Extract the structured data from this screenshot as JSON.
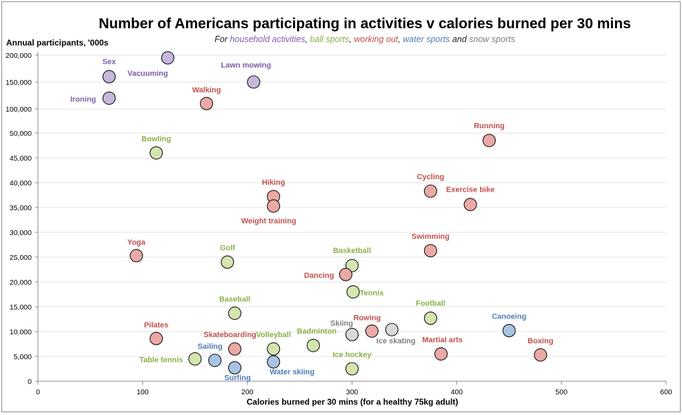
{
  "chart_data": {
    "type": "scatter",
    "title": "Number of Americans participating in activities v calories burned per 30 mins",
    "subtitle": {
      "prefix": "For ",
      "household": "household  activities",
      "sep1": ", ",
      "ball": "ball sports",
      "sep2": ", ",
      "working": "working  out",
      "sep3": ", ",
      "water": "water sports",
      "and": " and ",
      "snow": "snow sports"
    },
    "xlabel": "Calories  burned per 30 mins (for a healthy 75kg adult)",
    "ylabel": "Annual participants, '000s",
    "xlim": [
      0,
      600
    ],
    "x_ticks": [
      0,
      100,
      200,
      300,
      400,
      500,
      600
    ],
    "y_ticks": [
      "0",
      "5,000",
      "10,000",
      "15,000",
      "20,000",
      "25,000",
      "30,000",
      "35,000",
      "40,000",
      "45,000",
      "50,000",
      "100,000",
      "150,000",
      "200,000"
    ],
    "y_axis_note": "broken scale: 0–50,000 linear, then 50,000 to 200,000 compressed",
    "colors": {
      "household": {
        "fill": "#c6b8dd",
        "text": "#7b5fa8"
      },
      "ball": {
        "fill": "#d4e5b0",
        "text": "#8bb04a"
      },
      "working": {
        "fill": "#eba9a6",
        "text": "#c0504d"
      },
      "water": {
        "fill": "#a9c3e3",
        "text": "#4f7db8"
      },
      "snow": {
        "fill": "#d9d9d9",
        "text": "#7f7f7f"
      }
    },
    "series": [
      {
        "name": "household activities",
        "key": "household",
        "points": [
          {
            "label": "Sex",
            "x": 68,
            "y": 160000
          },
          {
            "label": "Vacuuming",
            "x": 124,
            "y": 195000
          },
          {
            "label": "Ironing",
            "x": 68,
            "y": 120000
          },
          {
            "label": "Lawn mowing",
            "x": 206,
            "y": 150000
          }
        ]
      },
      {
        "name": "ball sports",
        "key": "ball",
        "points": [
          {
            "label": "Bowling",
            "x": 113,
            "y": 46000
          },
          {
            "label": "Golf",
            "x": 181,
            "y": 24000
          },
          {
            "label": "Basketball",
            "x": 300,
            "y": 23300
          },
          {
            "label": "Tennis",
            "x": 301,
            "y": 18000
          },
          {
            "label": "Baseball",
            "x": 188,
            "y": 13700
          },
          {
            "label": "Football",
            "x": 375,
            "y": 12700
          },
          {
            "label": "Volleyball",
            "x": 225,
            "y": 6500
          },
          {
            "label": "Badminton",
            "x": 263,
            "y": 7200
          },
          {
            "label": "Table tennis",
            "x": 150,
            "y": 4500
          },
          {
            "label": "Ice hockey",
            "x": 300,
            "y": 2500
          }
        ]
      },
      {
        "name": "working out",
        "key": "working",
        "points": [
          {
            "label": "Walking",
            "x": 161,
            "y": 110000
          },
          {
            "label": "Running",
            "x": 431,
            "y": 48500
          },
          {
            "label": "Cycling",
            "x": 375,
            "y": 38300
          },
          {
            "label": "Exercise bike",
            "x": 413,
            "y": 35600
          },
          {
            "label": "Hiking",
            "x": 225,
            "y": 37200
          },
          {
            "label": "Weight training",
            "x": 225,
            "y": 35300
          },
          {
            "label": "Yoga",
            "x": 94,
            "y": 25300
          },
          {
            "label": "Swimming",
            "x": 375,
            "y": 26300
          },
          {
            "label": "Dancing",
            "x": 294,
            "y": 21500
          },
          {
            "label": "Pilates",
            "x": 113,
            "y": 8600
          },
          {
            "label": "Rowing",
            "x": 319,
            "y": 10100
          },
          {
            "label": "Skateboarding",
            "x": 188,
            "y": 6500
          },
          {
            "label": "Martial arts",
            "x": 385,
            "y": 5500
          },
          {
            "label": "Boxing",
            "x": 480,
            "y": 5300
          }
        ]
      },
      {
        "name": "water sports",
        "key": "water",
        "points": [
          {
            "label": "Canoeing",
            "x": 450,
            "y": 10200
          },
          {
            "label": "Sailing",
            "x": 169,
            "y": 4200
          },
          {
            "label": "Surfing",
            "x": 188,
            "y": 2700
          },
          {
            "label": "Water skiing",
            "x": 225,
            "y": 3900
          }
        ]
      },
      {
        "name": "snow sports",
        "key": "snow",
        "points": [
          {
            "label": "Skiing",
            "x": 300,
            "y": 9400
          },
          {
            "label": "Ice skating",
            "x": 338,
            "y": 10400
          }
        ]
      }
    ]
  }
}
